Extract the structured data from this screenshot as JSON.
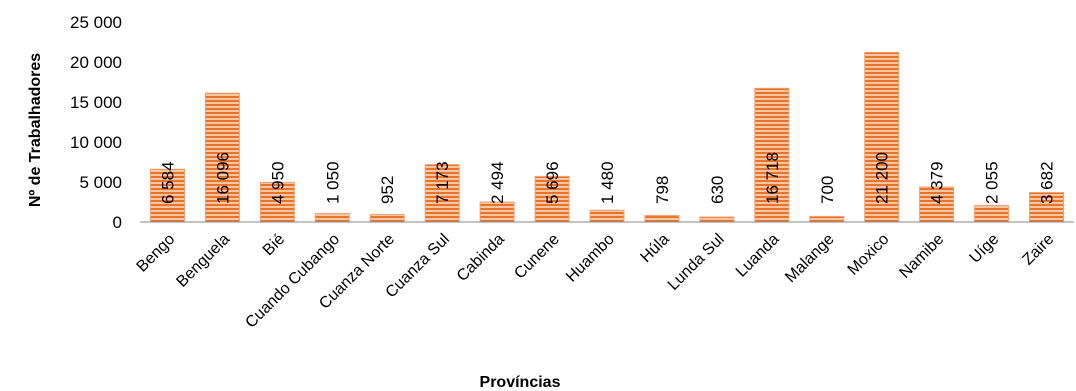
{
  "chart_data": {
    "type": "bar",
    "title": "",
    "xlabel": "Províncias",
    "ylabel": "Nº de Trabalhadores",
    "ylim": [
      0,
      25000
    ],
    "yticks": [
      {
        "value": 0,
        "label": "0"
      },
      {
        "value": 5000,
        "label": "5 000"
      },
      {
        "value": 10000,
        "label": "10 000"
      },
      {
        "value": 15000,
        "label": "15 000"
      },
      {
        "value": 20000,
        "label": "20 000"
      },
      {
        "value": 25000,
        "label": "25 000"
      }
    ],
    "grid": false,
    "legend": "none",
    "bar_color": "#f0a070",
    "bar_stripe_color": "#e8742c",
    "categories": [
      "Bengo",
      "Benguela",
      "Bié",
      "Cuando Cubango",
      "Cuanza Norte",
      "Cuanza Sul",
      "Cabinda",
      "Cunene",
      "Huambo",
      "Húla",
      "Lunda Sul",
      "Luanda",
      "Malange",
      "Moxico",
      "Namibe",
      "Uíge",
      "Zaire"
    ],
    "values": [
      6584,
      16096,
      4950,
      1050,
      952,
      7173,
      2494,
      5696,
      1480,
      798,
      630,
      16718,
      700,
      21200,
      4379,
      2055,
      3682
    ],
    "data_labels": [
      "6 584",
      "16 096",
      "4 950",
      "1 050",
      "952",
      "7 173",
      "2 494",
      "5 696",
      "1 480",
      "798",
      "630",
      "16 718",
      "700",
      "21 200",
      "4 379",
      "2 055",
      "3 682"
    ]
  }
}
